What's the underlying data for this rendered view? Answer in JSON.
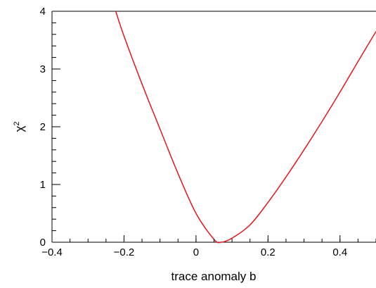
{
  "chart_data": {
    "type": "line",
    "title": "",
    "xlabel": "trace anomaly b",
    "ylabel": "χ",
    "ylabel_superscript": "2",
    "xlim": [
      -0.4,
      0.5
    ],
    "ylim": [
      0,
      4
    ],
    "xticks": [
      -0.4,
      -0.2,
      0,
      0.2,
      0.4
    ],
    "xtick_labels": [
      "−0.4",
      "−0.2",
      "0",
      "0.2",
      "0.4"
    ],
    "yticks": [
      0,
      1,
      2,
      3,
      4
    ],
    "ytick_labels": [
      "0",
      "1",
      "2",
      "3",
      "4"
    ],
    "grid": false,
    "legend": "none",
    "series": [
      {
        "color": "#e8141c",
        "x": [
          -0.223,
          -0.2,
          -0.15,
          -0.1,
          -0.05,
          0.0,
          0.05,
          0.07,
          0.1,
          0.15,
          0.2,
          0.25,
          0.3,
          0.35,
          0.4,
          0.45,
          0.5
        ],
        "y": [
          4.0,
          3.57,
          2.74,
          1.96,
          1.19,
          0.5,
          0.05,
          0.0,
          0.07,
          0.3,
          0.69,
          1.13,
          1.6,
          2.09,
          2.6,
          3.13,
          3.65
        ]
      }
    ]
  }
}
